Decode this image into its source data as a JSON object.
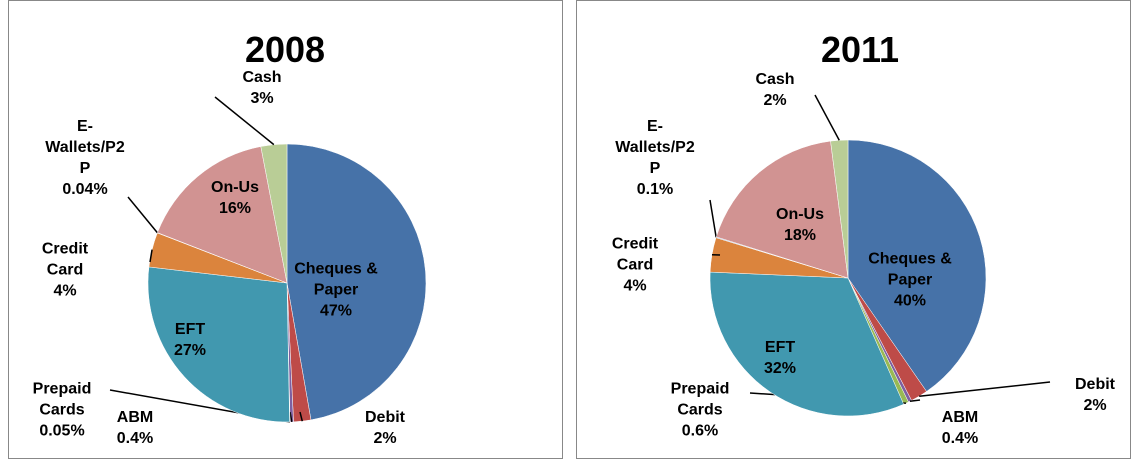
{
  "chart_data": [
    {
      "type": "pie",
      "title": "2008",
      "categories": [
        "Cheques & Paper",
        "Debit",
        "ABM",
        "Prepaid Cards",
        "EFT",
        "Credit Card",
        "E-Wallets/P2P",
        "On-Us",
        "Cash"
      ],
      "values": [
        47,
        2,
        0.4,
        0.05,
        27,
        4,
        0.04,
        16,
        3
      ],
      "value_labels": [
        "47%",
        "2%",
        "0.4%",
        "0.05%",
        "27%",
        "4%",
        "0.04%",
        "16%",
        "3%"
      ],
      "colors": [
        "#4672a8",
        "#be4b48",
        "#7d5fa0",
        "#98b954",
        "#4198af",
        "#db843d",
        "#93a9cf",
        "#d19392",
        "#b9cd96"
      ]
    },
    {
      "type": "pie",
      "title": "2011",
      "categories": [
        "Cheques & Paper",
        "Debit",
        "ABM",
        "Prepaid Cards",
        "EFT",
        "Credit Card",
        "E-Wallets/P2P",
        "On-Us",
        "Cash"
      ],
      "values": [
        40,
        2,
        0.4,
        0.6,
        32,
        4,
        0.1,
        18,
        2
      ],
      "value_labels": [
        "40%",
        "2%",
        "0.4%",
        "0.6%",
        "32%",
        "4%",
        "0.1%",
        "18%",
        "2%"
      ],
      "colors": [
        "#4672a8",
        "#be4b48",
        "#7d5fa0",
        "#98b954",
        "#4198af",
        "#db843d",
        "#93a9cf",
        "#d19392",
        "#b9cd96"
      ]
    }
  ]
}
